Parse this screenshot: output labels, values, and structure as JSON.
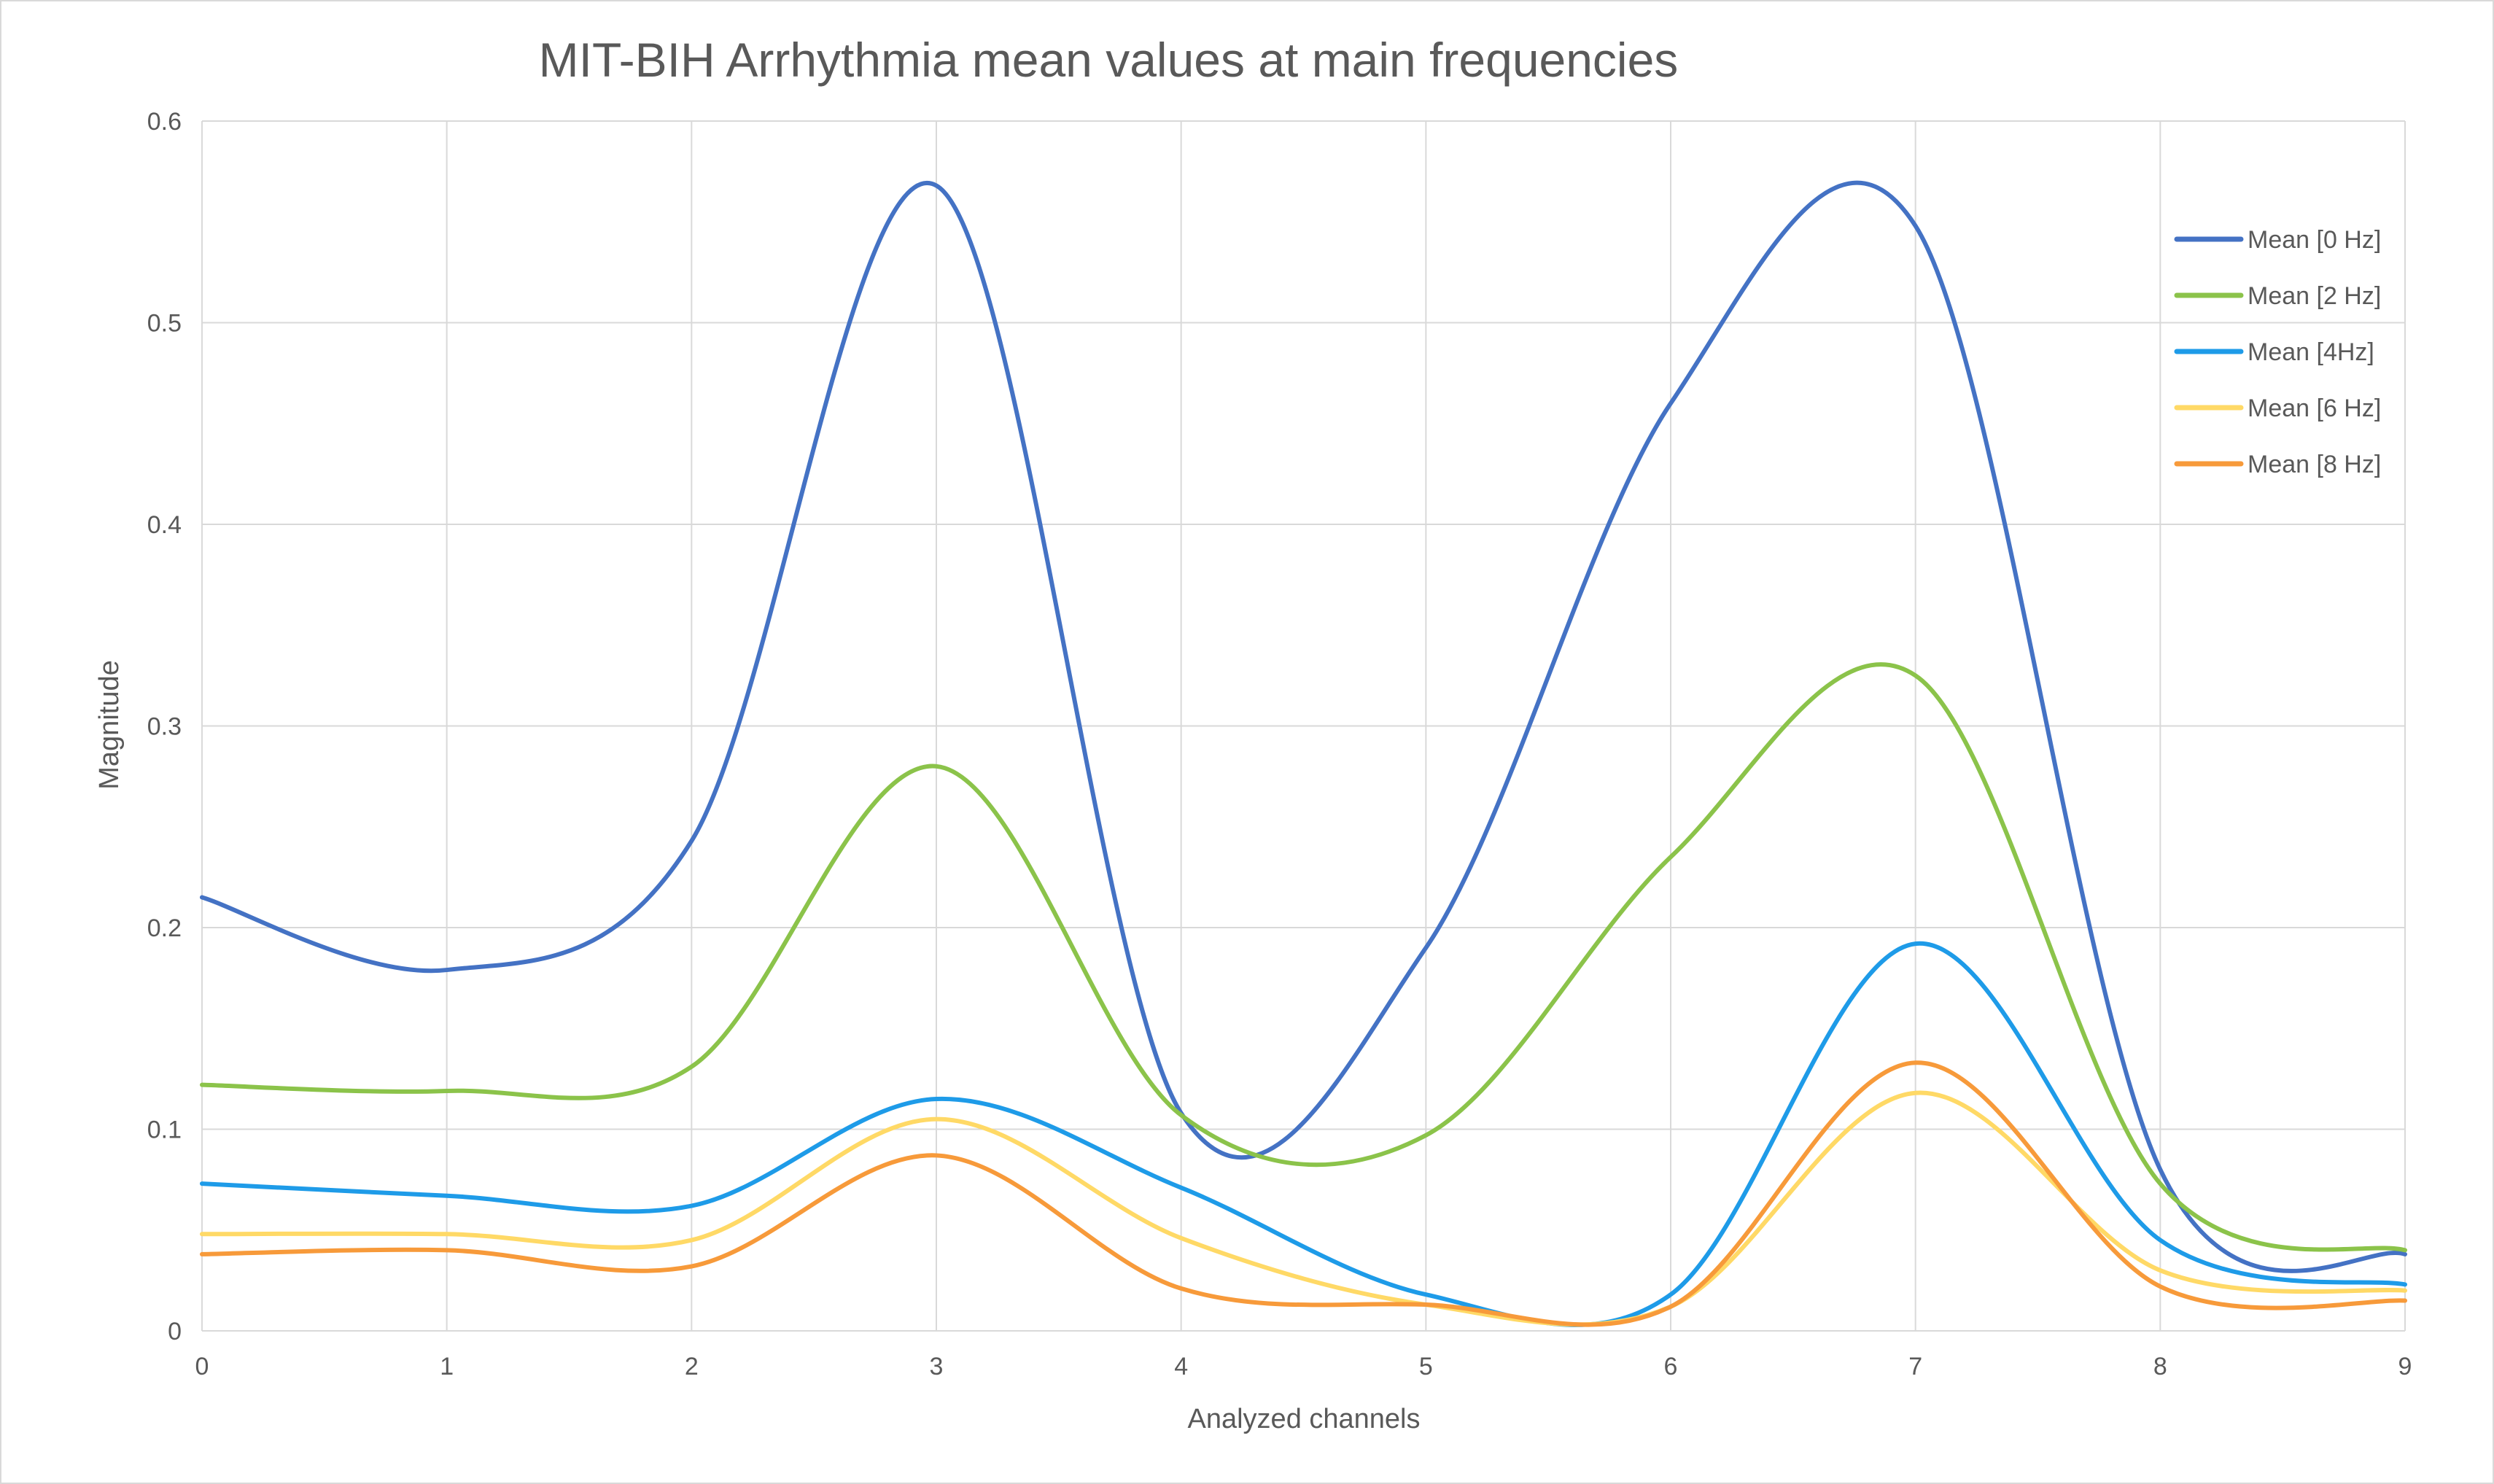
{
  "chart_data": {
    "type": "line",
    "title": "MIT-BIH Arrhythmia mean values at main frequencies",
    "xlabel": "Analyzed channels",
    "ylabel": "Magnitude",
    "x": [
      0,
      1,
      2,
      3,
      4,
      5,
      6,
      7,
      8,
      9
    ],
    "xlim": [
      0,
      9
    ],
    "ylim": [
      0,
      0.6
    ],
    "x_ticks": [
      "0",
      "1",
      "2",
      "3",
      "4",
      "5",
      "6",
      "7",
      "8",
      "9"
    ],
    "y_ticks": [
      "0",
      "0.1",
      "0.2",
      "0.3",
      "0.4",
      "0.5",
      "0.6"
    ],
    "grid": true,
    "legend_position": "top-right",
    "smooth": true,
    "series": [
      {
        "name": "Mean [0 Hz]",
        "color": "#4472C4",
        "values": [
          0.215,
          0.179,
          0.243,
          0.568,
          0.108,
          0.19,
          0.46,
          0.548,
          0.08,
          0.038
        ]
      },
      {
        "name": "Mean [2 Hz]",
        "color": "#8BC34A",
        "values": [
          0.122,
          0.119,
          0.131,
          0.28,
          0.107,
          0.097,
          0.235,
          0.325,
          0.073,
          0.04
        ]
      },
      {
        "name": "Mean [4Hz]",
        "color": "#1E9BE8",
        "values": [
          0.073,
          0.067,
          0.062,
          0.115,
          0.071,
          0.018,
          0.018,
          0.192,
          0.045,
          0.023
        ]
      },
      {
        "name": "Mean [6 Hz]",
        "color": "#FFD966",
        "values": [
          0.048,
          0.048,
          0.045,
          0.105,
          0.046,
          0.013,
          0.012,
          0.118,
          0.03,
          0.02
        ]
      },
      {
        "name": "Mean [8 Hz]",
        "color": "#F79A3A",
        "values": [
          0.038,
          0.04,
          0.032,
          0.087,
          0.021,
          0.013,
          0.012,
          0.133,
          0.022,
          0.015
        ]
      }
    ]
  }
}
